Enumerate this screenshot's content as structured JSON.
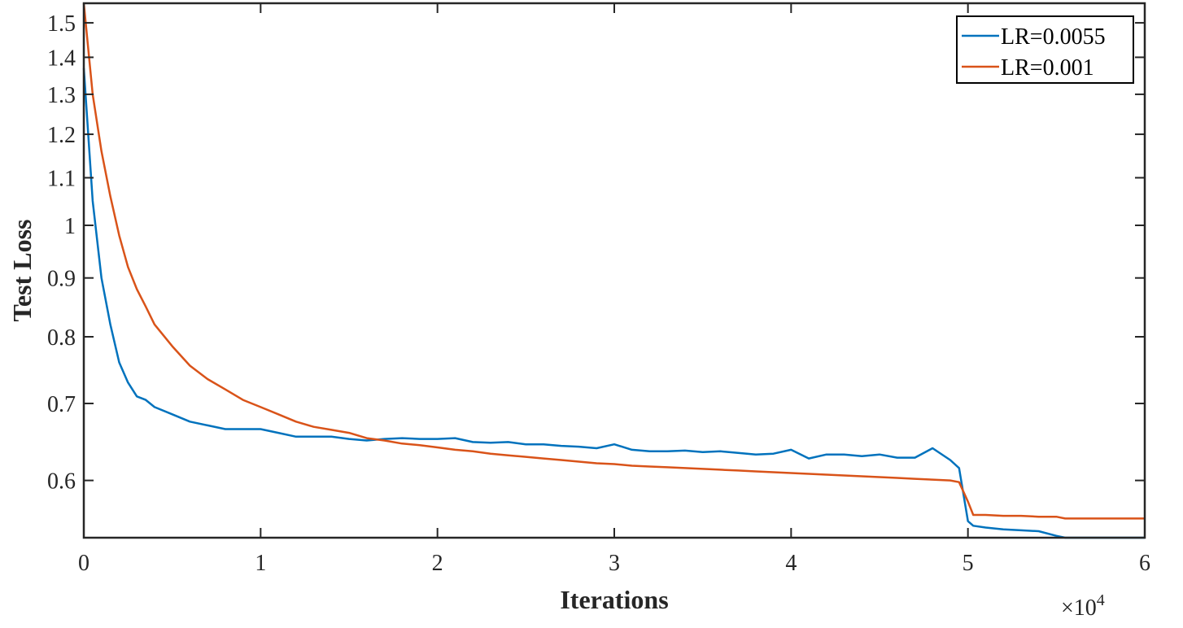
{
  "chart_data": {
    "type": "line",
    "xlabel": "Iterations",
    "ylabel": "Test Loss",
    "x_multiplier": "×10",
    "x_multiplier_exp": "4",
    "xlim": [
      0,
      60000
    ],
    "ylim": [
      0.535,
      1.56
    ],
    "y_scale": "log",
    "x_ticks": [
      0,
      10000,
      20000,
      30000,
      40000,
      50000,
      60000
    ],
    "x_tick_labels": [
      "0",
      "1",
      "2",
      "3",
      "4",
      "5",
      "6"
    ],
    "y_ticks": [
      0.6,
      0.7,
      0.8,
      0.9,
      1.0,
      1.1,
      1.2,
      1.3,
      1.4,
      1.5
    ],
    "y_tick_labels": [
      "0.6",
      "0.7",
      "0.8",
      "0.9",
      "1",
      "1.1",
      "1.2",
      "1.3",
      "1.4",
      "1.5"
    ],
    "legend_position": "top-right",
    "grid": false,
    "series": [
      {
        "name": "LR=0.0055",
        "color": "#0072BD",
        "x": [
          0,
          500,
          1000,
          1500,
          2000,
          2500,
          3000,
          3500,
          4000,
          5000,
          6000,
          7000,
          8000,
          9000,
          10000,
          11000,
          12000,
          13000,
          14000,
          15000,
          16000,
          17000,
          18000,
          19000,
          20000,
          21000,
          22000,
          23000,
          24000,
          25000,
          26000,
          27000,
          28000,
          29000,
          30000,
          31000,
          32000,
          33000,
          34000,
          35000,
          36000,
          37000,
          38000,
          39000,
          40000,
          41000,
          42000,
          43000,
          44000,
          45000,
          46000,
          47000,
          48000,
          49000,
          49500,
          50000,
          50300,
          51000,
          52000,
          53000,
          54000,
          55000,
          55500,
          56000,
          57000,
          58000,
          59000,
          60000
        ],
        "y": [
          1.37,
          1.05,
          0.9,
          0.82,
          0.76,
          0.73,
          0.71,
          0.705,
          0.695,
          0.685,
          0.675,
          0.67,
          0.665,
          0.665,
          0.665,
          0.66,
          0.655,
          0.655,
          0.655,
          0.652,
          0.65,
          0.652,
          0.653,
          0.652,
          0.652,
          0.653,
          0.648,
          0.647,
          0.648,
          0.645,
          0.645,
          0.643,
          0.642,
          0.64,
          0.645,
          0.638,
          0.636,
          0.636,
          0.637,
          0.635,
          0.636,
          0.634,
          0.632,
          0.633,
          0.638,
          0.627,
          0.632,
          0.632,
          0.63,
          0.632,
          0.628,
          0.628,
          0.64,
          0.625,
          0.615,
          0.553,
          0.548,
          0.546,
          0.544,
          0.543,
          0.542,
          0.537,
          0.535,
          0.535,
          0.535,
          0.535,
          0.535,
          0.535
        ]
      },
      {
        "name": "LR=0.001",
        "color": "#D95319",
        "x": [
          0,
          500,
          1000,
          1500,
          2000,
          2500,
          3000,
          3500,
          4000,
          5000,
          6000,
          7000,
          8000,
          9000,
          10000,
          11000,
          12000,
          13000,
          14000,
          15000,
          16000,
          17000,
          18000,
          19000,
          20000,
          21000,
          22000,
          23000,
          24000,
          25000,
          26000,
          27000,
          28000,
          29000,
          30000,
          31000,
          32000,
          33000,
          34000,
          35000,
          36000,
          37000,
          38000,
          39000,
          40000,
          41000,
          42000,
          43000,
          44000,
          45000,
          46000,
          47000,
          48000,
          49000,
          49500,
          50000,
          50300,
          51000,
          52000,
          53000,
          54000,
          55000,
          55500,
          56000,
          57000,
          58000,
          59000,
          60000
        ],
        "y": [
          1.56,
          1.3,
          1.16,
          1.06,
          0.98,
          0.92,
          0.88,
          0.85,
          0.82,
          0.785,
          0.755,
          0.735,
          0.72,
          0.705,
          0.695,
          0.685,
          0.675,
          0.668,
          0.664,
          0.66,
          0.653,
          0.65,
          0.646,
          0.644,
          0.641,
          0.638,
          0.636,
          0.633,
          0.631,
          0.629,
          0.627,
          0.625,
          0.623,
          0.621,
          0.62,
          0.618,
          0.617,
          0.616,
          0.615,
          0.614,
          0.613,
          0.612,
          0.611,
          0.61,
          0.609,
          0.608,
          0.607,
          0.606,
          0.605,
          0.604,
          0.603,
          0.602,
          0.601,
          0.6,
          0.598,
          0.575,
          0.56,
          0.56,
          0.559,
          0.559,
          0.558,
          0.558,
          0.556,
          0.556,
          0.556,
          0.556,
          0.556,
          0.556
        ]
      }
    ]
  }
}
